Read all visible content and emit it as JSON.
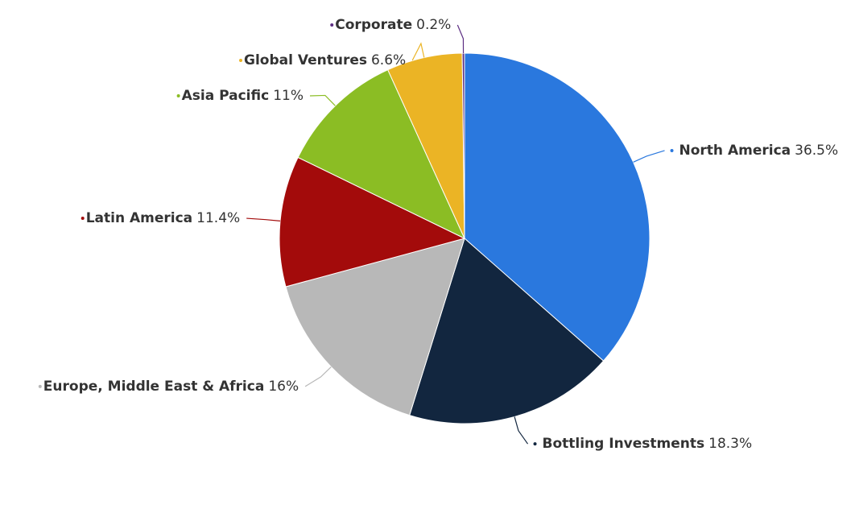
{
  "chart_data": {
    "type": "pie",
    "categories": [
      "North America",
      "Bottling Investments",
      "Europe, Middle East & Africa",
      "Latin America",
      "Asia Pacific",
      "Global Ventures",
      "Corporate"
    ],
    "values": [
      36.5,
      18.3,
      16,
      11.4,
      11,
      6.6,
      0.2
    ],
    "value_labels": [
      "36.5%",
      "18.3%",
      "16%",
      "11.4%",
      "11%",
      "6.6%",
      "0.2%"
    ],
    "colors": [
      "#2a78de",
      "#12263f",
      "#b8b8b8",
      "#a30b0b",
      "#8bbd24",
      "#ebb425",
      "#5c2d82"
    ]
  }
}
